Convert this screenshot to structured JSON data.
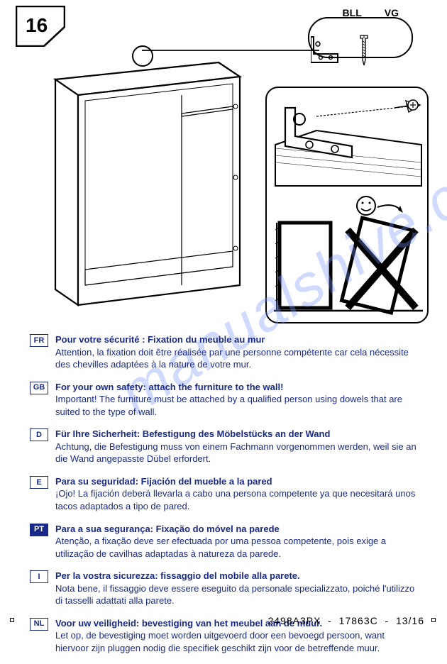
{
  "step": "16",
  "callout": {
    "labels": [
      "BLL",
      "VG"
    ]
  },
  "watermark": "manualshive.com",
  "languages": [
    {
      "code": "FR",
      "filled": false,
      "title": "Pour votre sécurité : Fixation du meuble au mur",
      "body": "Attention, la fixation doit être réalisée par une personne compétente car cela nécessite des chevilles adaptées à la nature de votre mur."
    },
    {
      "code": "GB",
      "filled": false,
      "title": "For your own safety: attach the furniture to the wall!",
      "body": "Important! The furniture must be attached by a qualified person using dowels that are suited to the type of wall."
    },
    {
      "code": "D",
      "filled": false,
      "title": "Für Ihre Sicherheit: Befestigung des Möbelstücks an der Wand",
      "body": "Achtung, die Befestigung muss von einem Fachmann vorgenommen werden, weil sie an die Wand angepasste Dübel erfordert."
    },
    {
      "code": "E",
      "filled": false,
      "title": "Para su seguridad: Fijación del mueble a la pared",
      "body": "¡Ojo! La fijación deberá llevarla a cabo una persona competente ya que necesitará unos tacos adaptados a tipo de pared."
    },
    {
      "code": "PT",
      "filled": true,
      "title": "Para a sua segurança: Fixação do móvel na parede",
      "body": "Atenção, a fixação deve ser efectuada por uma pessoa competente, pois exige a utilização de cavilhas adaptadas à natureza da parede."
    },
    {
      "code": "I",
      "filled": false,
      "title": "Per la vostra sicurezza: fissaggio del mobile alla parete.",
      "body": "Nota bene, il fissaggio deve essere eseguito da personale specializzato, poiché l'utilizzo di tasselli adattati alla parete."
    },
    {
      "code": "NL",
      "filled": false,
      "title": "Voor uw veiligheid: bevestiging van het meubel aan de muur.",
      "body": "Let op, de bevestiging moet worden uitgevoerd door een bevoegd persoon, want hiervoor zijn pluggen nodig die specifiek geschikt zijn voor de betreffende muur."
    }
  ],
  "footer": {
    "code1": "2498A3PX",
    "code2": "17863C",
    "page": "13/16"
  },
  "colors": {
    "text": "#1a2a88",
    "stroke": "#000000",
    "watermark": "rgba(120,150,255,0.35)"
  }
}
